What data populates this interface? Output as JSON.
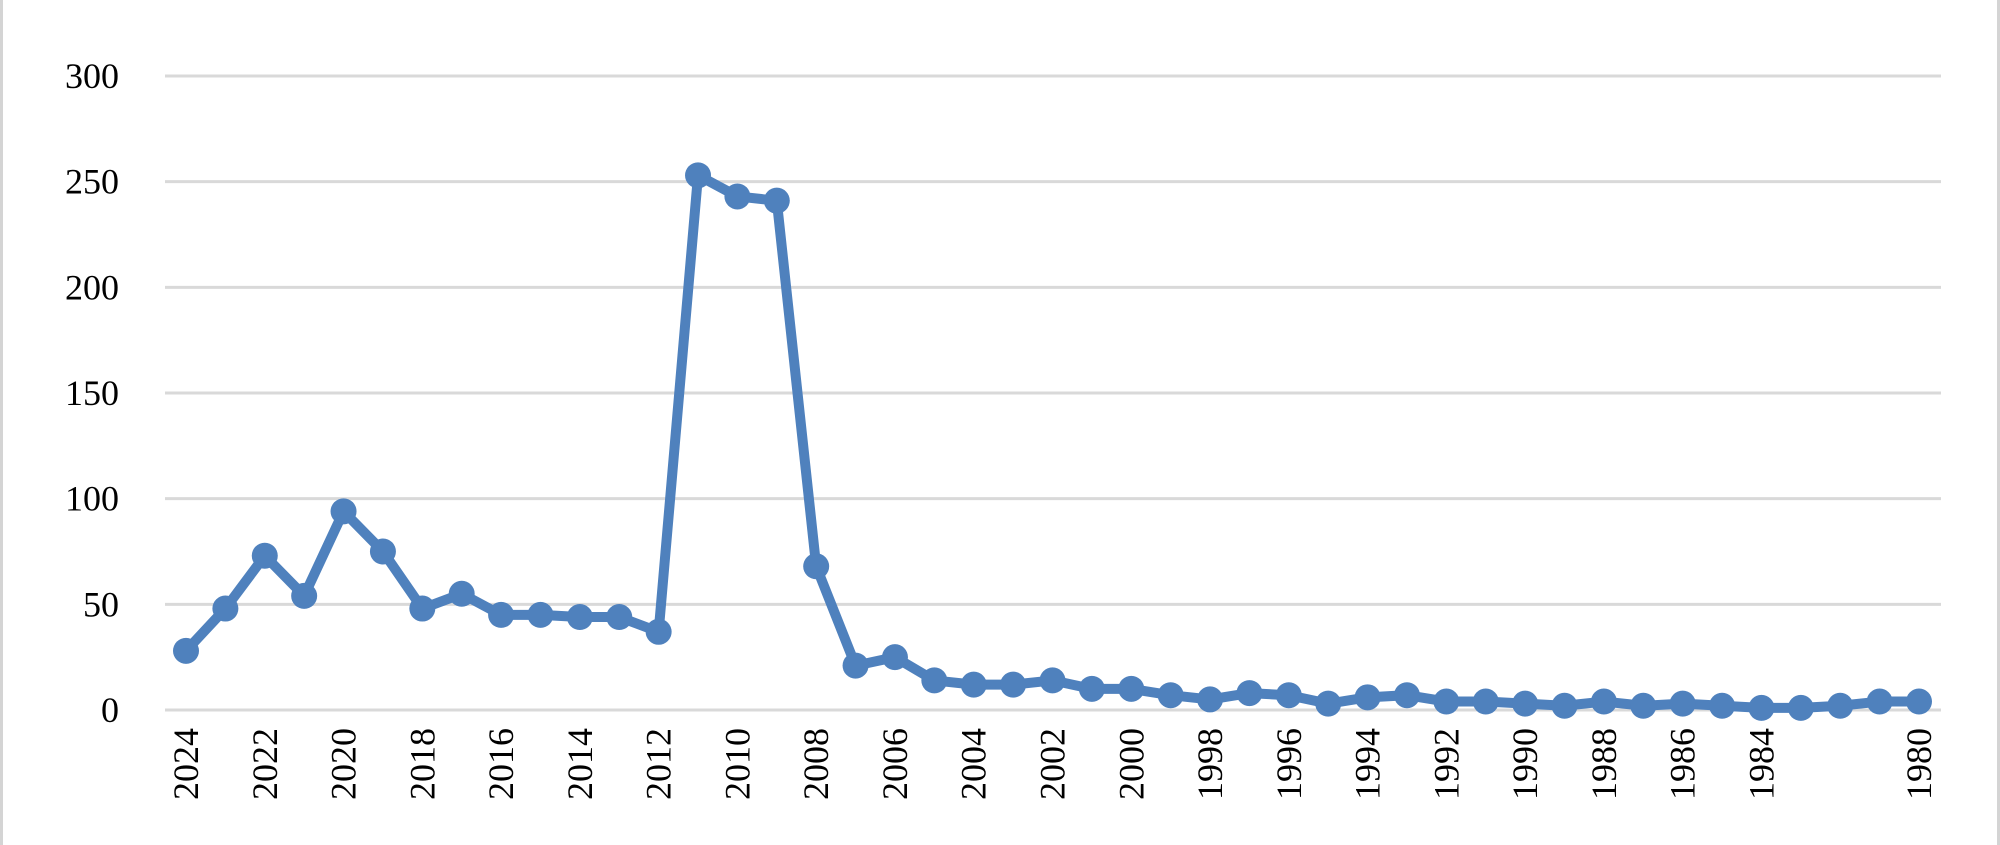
{
  "chart_data": {
    "type": "line",
    "title": "",
    "xlabel": "",
    "ylabel": "",
    "ylim": [
      0,
      300
    ],
    "yticks": [
      0,
      50,
      100,
      150,
      200,
      250,
      300
    ],
    "xtick_labels": [
      "2024",
      "2022",
      "2020",
      "2018",
      "2016",
      "2014",
      "2012",
      "2010",
      "2008",
      "2006",
      "2004",
      "2002",
      "2000",
      "1998",
      "1996",
      "1994",
      "1992",
      "1990",
      "1988",
      "1986",
      "1984",
      "1980"
    ],
    "x": [
      2024,
      2023,
      2022,
      2021,
      2020,
      2019,
      2018,
      2017,
      2016,
      2015,
      2014,
      2013,
      2012,
      2011,
      2010,
      2009,
      2008,
      2007,
      2006,
      2005,
      2004,
      2003,
      2002,
      2001,
      2000,
      1999,
      1998,
      1997,
      1996,
      1995,
      1994,
      1993,
      1992,
      1991,
      1990,
      1989,
      1988,
      1987,
      1986,
      1985,
      1984,
      1983,
      1982,
      1981,
      1980
    ],
    "series": [
      {
        "values": [
          28,
          48,
          73,
          54,
          94,
          75,
          48,
          55,
          45,
          45,
          44,
          44,
          37,
          253,
          243,
          241,
          68,
          21,
          25,
          14,
          12,
          12,
          14,
          10,
          10,
          7,
          5,
          8,
          7,
          3,
          6,
          7,
          4,
          4,
          3,
          2,
          4,
          2,
          3,
          2,
          1,
          1,
          2,
          4,
          4
        ]
      }
    ],
    "grid": true,
    "legend": "none",
    "colors": {
      "line": "#4f81bd",
      "grid": "#d9d9d9",
      "frame": "#d4d4d4"
    }
  }
}
